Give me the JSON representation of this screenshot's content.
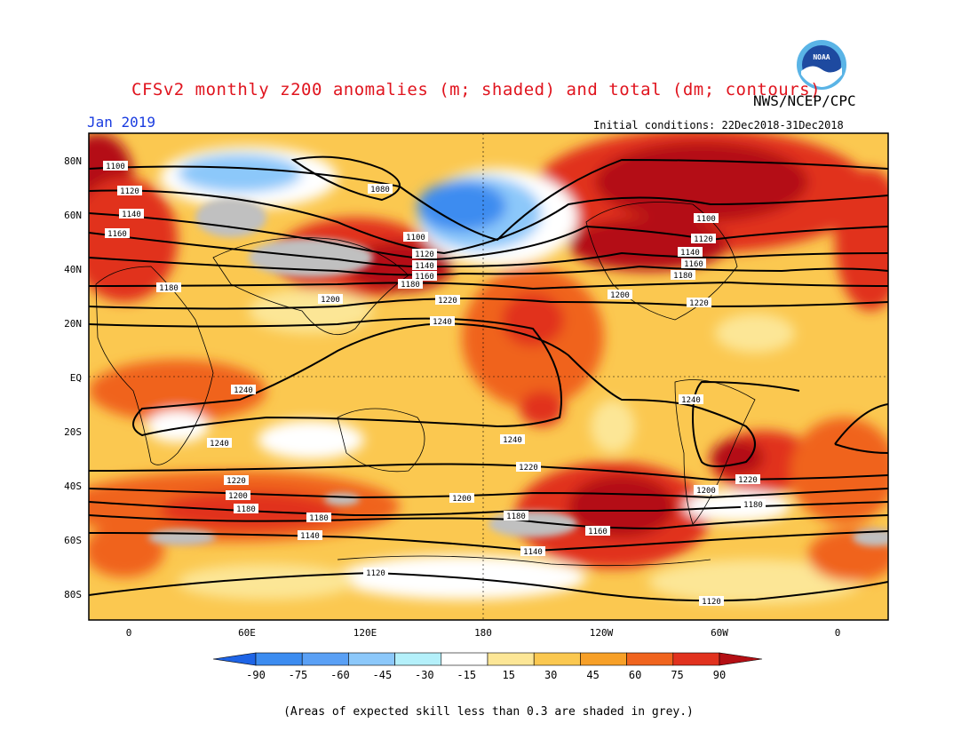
{
  "title": "CFSv2 monthly z200 anomalies (m; shaded) and total (dm; contours)",
  "month": "Jan 2019",
  "agency": "NWS/NCEP/CPC",
  "initial_conditions": "Initial conditions: 22Dec2018-31Dec2018",
  "footnote": "(Areas of expected skill less than 0.3 are shaded in grey.)",
  "logo_text": "NOAA",
  "lat_labels": [
    "80N",
    "60N",
    "40N",
    "20N",
    "EQ",
    "20S",
    "40S",
    "60S",
    "80S"
  ],
  "lon_labels": [
    "0",
    "60E",
    "120E",
    "180",
    "120W",
    "60W",
    "0"
  ],
  "colorbar": {
    "labels": [
      "-90",
      "-75",
      "-60",
      "-45",
      "-30",
      "-15",
      "15",
      "30",
      "45",
      "60",
      "75",
      "90"
    ],
    "colors": [
      "#1e64e6",
      "#3c8cf0",
      "#5aa0f5",
      "#8cc8fa",
      "#b4f0fa",
      "#ffffff",
      "#fce696",
      "#fbc850",
      "#f7a028",
      "#f0641e",
      "#e1321e",
      "#b40f14"
    ]
  },
  "contours": {
    "labels": [
      "1100",
      "1080",
      "1120",
      "1140",
      "1160",
      "1180",
      "1200",
      "1220",
      "1240"
    ],
    "placed": [
      {
        "text": "1100"
      },
      {
        "text": "1120"
      },
      {
        "text": "1140"
      },
      {
        "text": "1160"
      },
      {
        "text": "1180"
      },
      {
        "text": "1080"
      },
      {
        "text": "1100"
      },
      {
        "text": "1120"
      },
      {
        "text": "1140"
      },
      {
        "text": "1160"
      },
      {
        "text": "1180"
      },
      {
        "text": "1200"
      },
      {
        "text": "1220"
      },
      {
        "text": "1240"
      },
      {
        "text": "1100"
      },
      {
        "text": "1120"
      },
      {
        "text": "1140"
      },
      {
        "text": "1160"
      },
      {
        "text": "1180"
      },
      {
        "text": "1200"
      },
      {
        "text": "1220"
      },
      {
        "text": "1240"
      },
      {
        "text": "1240"
      },
      {
        "text": "1240"
      },
      {
        "text": "1240"
      },
      {
        "text": "1220"
      },
      {
        "text": "1200"
      },
      {
        "text": "1180"
      },
      {
        "text": "1180"
      },
      {
        "text": "1140"
      },
      {
        "text": "1220"
      },
      {
        "text": "1200"
      },
      {
        "text": "1180"
      },
      {
        "text": "1160"
      },
      {
        "text": "1140"
      },
      {
        "text": "1120"
      },
      {
        "text": "1120"
      },
      {
        "text": "1200"
      },
      {
        "text": "1180"
      },
      {
        "text": "1220"
      }
    ]
  }
}
